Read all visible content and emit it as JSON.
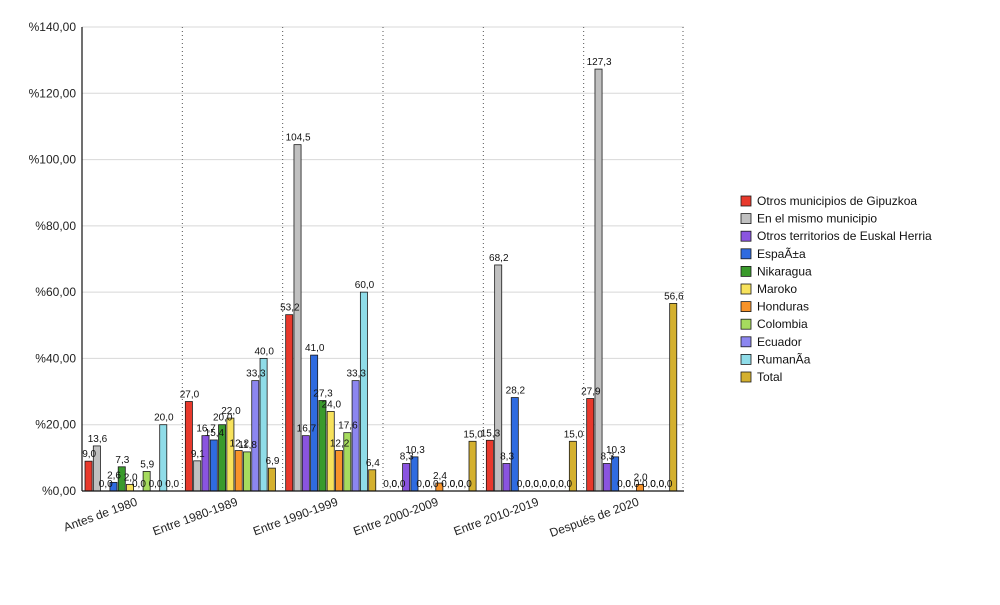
{
  "chart_data": {
    "type": "bar",
    "title": "",
    "xlabel": "",
    "ylabel": "",
    "ylim": [
      0,
      140
    ],
    "y_ticks": [
      0,
      20,
      40,
      60,
      80,
      100,
      120,
      140
    ],
    "y_tick_labels": [
      "%0,00",
      "%20,00",
      "%40,00",
      "%60,00",
      "%80,00",
      "%100,00",
      "%120,00",
      "%140,00"
    ],
    "grid": true,
    "legend_position": "right",
    "categories": [
      "Antes de 1980",
      "Entre 1980-1989",
      "Entre 1990-1999",
      "Entre 2000-2009",
      "Entre 2010-2019",
      "Después de 2020"
    ],
    "series": [
      {
        "name": "Otros municipios de Gipuzkoa",
        "color": "#e8392c",
        "values": [
          9.0,
          27.0,
          53.2,
          0.0,
          15.3,
          27.9
        ],
        "labels": [
          "9,0",
          "27,0",
          "53,2",
          "0,0",
          "15,3",
          "27,9"
        ]
      },
      {
        "name": "En el mismo municipio",
        "color": "#c0c0c0",
        "values": [
          13.6,
          9.1,
          104.5,
          0.0,
          68.2,
          127.3
        ],
        "labels": [
          "13,6",
          "9,1",
          "104,5",
          "0,0",
          "68,2",
          "127,3"
        ]
      },
      {
        "name": "Otros territorios de Euskal Herria",
        "color": "#8a54e0",
        "values": [
          0.0,
          16.7,
          16.7,
          8.3,
          8.3,
          8.3
        ],
        "labels": [
          "0,0",
          "16,7",
          "16,7",
          "8,3",
          "8,3",
          "8,3"
        ]
      },
      {
        "name": "EspaÃ±a",
        "color": "#2f6be0",
        "values": [
          2.6,
          15.4,
          41.0,
          10.3,
          28.2,
          10.3
        ],
        "labels": [
          "2,6",
          "15,4",
          "41,0",
          "10,3",
          "28,2",
          "10,3"
        ]
      },
      {
        "name": "Nikaragua",
        "color": "#3a9a2c",
        "values": [
          7.3,
          20.0,
          27.3,
          0.0,
          0.0,
          0.0
        ],
        "labels": [
          "7,3",
          "20,0",
          "27,3",
          "0,0",
          "0,0",
          "0,0"
        ]
      },
      {
        "name": "Maroko",
        "color": "#f7e25c",
        "values": [
          2.0,
          22.0,
          24.0,
          0.0,
          0.0,
          0.0
        ],
        "labels": [
          "2,0",
          "22,0",
          "24,0",
          "0,0",
          "0,0",
          "0,0"
        ]
      },
      {
        "name": "Honduras",
        "color": "#f7932a",
        "values": [
          0.0,
          12.2,
          12.2,
          2.4,
          0.0,
          2.0
        ],
        "labels": [
          "0,0",
          "12,2",
          "12,2",
          "2,4",
          "0,0",
          "2,0"
        ]
      },
      {
        "name": "Colombia",
        "color": "#a6db5e",
        "values": [
          5.9,
          11.8,
          17.6,
          0.0,
          0.0,
          0.0
        ],
        "labels": [
          "5,9",
          "11,8",
          "17,6",
          "0,0",
          "0,0",
          "0,0"
        ]
      },
      {
        "name": "Ecuador",
        "color": "#8c86f0",
        "values": [
          0.0,
          33.3,
          33.3,
          0.0,
          0.0,
          0.0
        ],
        "labels": [
          "0,0",
          "33,3",
          "33,3",
          "0,0",
          "0,0",
          "0,0"
        ]
      },
      {
        "name": "RumanÃ­a",
        "color": "#8fdce8",
        "values": [
          20.0,
          40.0,
          60.0,
          0.0,
          0.0,
          0.0
        ],
        "labels": [
          "20,0",
          "40,0",
          "60,0",
          "0,0",
          "0,0",
          "0,0"
        ]
      },
      {
        "name": "Total",
        "color": "#d4b02e",
        "values": [
          0.0,
          6.9,
          6.4,
          15.0,
          15.0,
          56.6
        ],
        "labels": [
          "0,0",
          "6,9",
          "6,4",
          "15,0",
          "15,0",
          "56,6"
        ]
      }
    ]
  }
}
